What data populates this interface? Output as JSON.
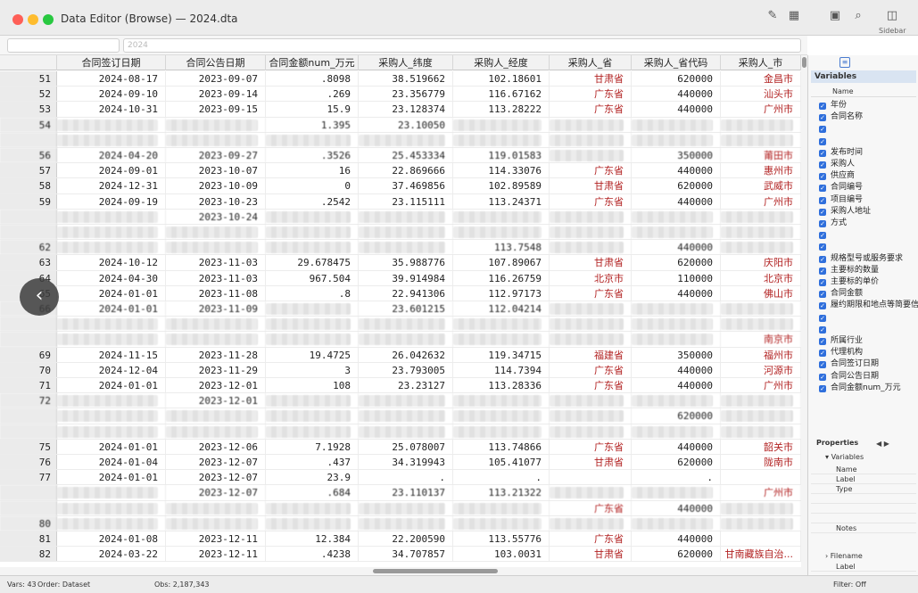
{
  "window": {
    "title": "Data Editor (Browse) — 2024.dta",
    "sidebar_label": "Sidebar"
  },
  "command": {
    "varname_placeholder": "",
    "value": "2024"
  },
  "columns": [
    "合同签订日期",
    "合同公告日期",
    "合同金额num_万元",
    "采购人_纬度",
    "采购人_经度",
    "采购人_省",
    "采购人_省代码",
    "采购人_市"
  ],
  "rows": [
    {
      "n": "51",
      "c": [
        "2024-08-17",
        "2023-09-07",
        ".8098",
        "38.519662",
        "102.18601",
        "甘肃省",
        "620000",
        "金昌市"
      ]
    },
    {
      "n": "52",
      "c": [
        "2024-09-10",
        "2023-09-14",
        ".269",
        "23.356779",
        "116.67162",
        "广东省",
        "440000",
        "汕头市"
      ]
    },
    {
      "n": "53",
      "c": [
        "2024-10-31",
        "2023-09-15",
        "15.9",
        "23.128374",
        "113.28222",
        "广东省",
        "440000",
        "广州市"
      ]
    },
    {
      "n": "54",
      "c": [
        "",
        "",
        "1.395",
        "23.10050",
        "",
        "",
        "",
        ""
      ],
      "blur": true
    },
    {
      "n": "",
      "c": [
        "",
        "",
        "",
        "",
        "",
        "",
        "",
        ""
      ],
      "blur": true
    },
    {
      "n": "56",
      "c": [
        "2024-04-20",
        "2023-09-27",
        ".3526",
        "25.453334",
        "119.01583",
        "",
        "350000",
        "莆田市"
      ],
      "blur": true
    },
    {
      "n": "57",
      "c": [
        "2024-09-01",
        "2023-10-07",
        "16",
        "22.869666",
        "114.33076",
        "广东省",
        "440000",
        "惠州市"
      ]
    },
    {
      "n": "58",
      "c": [
        "2024-12-31",
        "2023-10-09",
        "0",
        "37.469856",
        "102.89589",
        "甘肃省",
        "620000",
        "武威市"
      ]
    },
    {
      "n": "59",
      "c": [
        "2024-09-19",
        "2023-10-23",
        ".2542",
        "23.115111",
        "113.24371",
        "广东省",
        "440000",
        "广州市"
      ]
    },
    {
      "n": "",
      "c": [
        "",
        "2023-10-24",
        "",
        "",
        "",
        "",
        "",
        ""
      ],
      "blur": true
    },
    {
      "n": "",
      "c": [
        "",
        "",
        "",
        "",
        "",
        "",
        "",
        ""
      ],
      "blur": true
    },
    {
      "n": "62",
      "c": [
        "",
        "",
        "",
        "",
        "113.7548",
        "",
        "440000",
        ""
      ],
      "blur": true
    },
    {
      "n": "63",
      "c": [
        "2024-10-12",
        "2023-11-03",
        "29.678475",
        "35.988776",
        "107.89067",
        "甘肃省",
        "620000",
        "庆阳市"
      ]
    },
    {
      "n": "64",
      "c": [
        "2024-04-30",
        "2023-11-03",
        "967.504",
        "39.914984",
        "116.26759",
        "北京市",
        "110000",
        "北京市"
      ]
    },
    {
      "n": "65",
      "c": [
        "2024-01-01",
        "2023-11-08",
        ".8",
        "22.941306",
        "112.97173",
        "广东省",
        "440000",
        "佛山市"
      ]
    },
    {
      "n": "66",
      "c": [
        "2024-01-01",
        "2023-11-09",
        "",
        "23.601215",
        "112.04214",
        "",
        "",
        ""
      ],
      "blur": true
    },
    {
      "n": "",
      "c": [
        "",
        "",
        "",
        "",
        "",
        "",
        "",
        ""
      ],
      "blur": true
    },
    {
      "n": "",
      "c": [
        "",
        "",
        "",
        "",
        "",
        "",
        "",
        "南京市"
      ],
      "blur": true
    },
    {
      "n": "69",
      "c": [
        "2024-11-15",
        "2023-11-28",
        "19.4725",
        "26.042632",
        "119.34715",
        "福建省",
        "350000",
        "福州市"
      ]
    },
    {
      "n": "70",
      "c": [
        "2024-12-04",
        "2023-11-29",
        "3",
        "23.793005",
        "114.7394",
        "广东省",
        "440000",
        "河源市"
      ]
    },
    {
      "n": "71",
      "c": [
        "2024-01-01",
        "2023-12-01",
        "108",
        "23.23127",
        "113.28336",
        "广东省",
        "440000",
        "广州市"
      ]
    },
    {
      "n": "72",
      "c": [
        "",
        "2023-12-01",
        "",
        "",
        "",
        "",
        "",
        ""
      ],
      "blur": true
    },
    {
      "n": "",
      "c": [
        "",
        "",
        "",
        "",
        "",
        "",
        "620000",
        ""
      ],
      "blur": true
    },
    {
      "n": "",
      "c": [
        "",
        "",
        "",
        "",
        "",
        "",
        "",
        ""
      ],
      "blur": true
    },
    {
      "n": "75",
      "c": [
        "2024-01-01",
        "2023-12-06",
        "7.1928",
        "25.078007",
        "113.74866",
        "广东省",
        "440000",
        "韶关市"
      ]
    },
    {
      "n": "76",
      "c": [
        "2024-01-04",
        "2023-12-07",
        ".437",
        "34.319943",
        "105.41077",
        "甘肃省",
        "620000",
        "陇南市"
      ]
    },
    {
      "n": "77",
      "c": [
        "2024-01-01",
        "2023-12-07",
        "23.9",
        ".",
        ".",
        "",
        ".",
        " "
      ]
    },
    {
      "n": "",
      "c": [
        "",
        "2023-12-07",
        ".684",
        "23.110137",
        "113.21322",
        "",
        "",
        "广州市"
      ],
      "blur": true
    },
    {
      "n": "",
      "c": [
        "",
        "",
        "",
        "",
        "",
        "广东省",
        "440000",
        ""
      ],
      "blur": true
    },
    {
      "n": "80",
      "c": [
        "",
        "",
        "",
        "",
        "",
        "",
        "",
        ""
      ],
      "blur": true
    },
    {
      "n": "81",
      "c": [
        "2024-01-08",
        "2023-12-11",
        "12.384",
        "22.200590",
        "113.55776",
        "广东省",
        "440000",
        ""
      ]
    },
    {
      "n": "82",
      "c": [
        "2024-03-22",
        "2023-12-11",
        ".4238",
        "34.707857",
        "103.0031",
        "甘肃省",
        "620000",
        "甘南藏族自治..."
      ]
    }
  ],
  "variables_panel": {
    "title": "Variables",
    "col_name": "Name",
    "items": [
      "年份",
      "合同名称",
      "",
      "",
      "发布时间",
      "采购人",
      "供应商",
      "合同编号",
      "项目编号",
      "采购人地址",
      "方式",
      "",
      "",
      "规格型号或服务要求",
      "主要标的数量",
      "主要标的单价",
      "合同金额",
      "履约期限和地点等简要信息",
      "",
      "",
      "所属行业",
      "代理机构",
      "合同签订日期",
      "合同公告日期",
      "合同金额num_万元"
    ]
  },
  "properties_panel": {
    "title": "Properties",
    "sec_variables": "Variables",
    "rows": [
      "Name",
      "Label",
      "Type",
      "",
      "",
      "",
      "Notes"
    ],
    "sec_data": "Filename",
    "data_rows": [
      "Label"
    ]
  },
  "status": {
    "vars": "Vars: 43",
    "order": "Order: Dataset",
    "obs": "Obs: 2,187,343",
    "filter": "Filter: Off"
  }
}
